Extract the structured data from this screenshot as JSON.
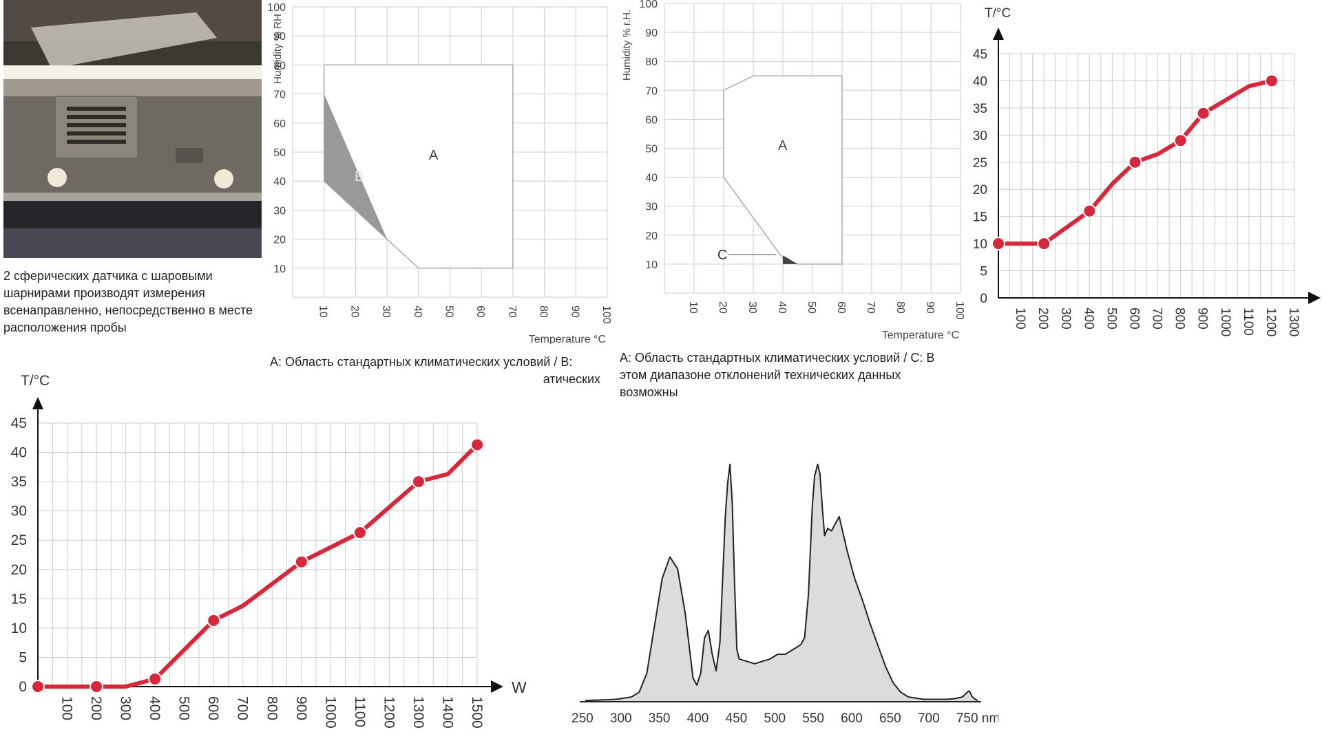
{
  "photo": {
    "caption": "2 сферических датчика с шаровыми шарнирами производят измерения всенаправленно, непосредственно в месте расположения пробы"
  },
  "chart1": {
    "caption_line1": "A: Область стандартных климатических условий / B:",
    "caption_line2": "атических"
  },
  "chart2": {
    "caption": "A: Область стандартных климатических условий / C: В этом диапазоне отклонений технических данных возможны"
  },
  "colors": {
    "series_red": "#d8263a",
    "grid": "#cccccc",
    "region_b": "#999999",
    "spectrum_fill": "#dcdcdc"
  },
  "chart_data": [
    {
      "type": "area",
      "ylabel": "Humidity % RH",
      "xlabel": "Temperature °C",
      "xlim": [
        0,
        100
      ],
      "ylim": [
        0,
        100
      ],
      "x_ticks": [
        10,
        20,
        30,
        40,
        50,
        60,
        70,
        80,
        90,
        100
      ],
      "y_ticks": [
        10,
        20,
        30,
        40,
        50,
        60,
        70,
        80,
        90,
        100
      ],
      "regions": [
        {
          "name": "A",
          "polygon": [
            [
              10,
              80
            ],
            [
              70,
              80
            ],
            [
              70,
              10
            ],
            [
              40,
              10
            ],
            [
              30,
              20
            ],
            [
              10,
              40
            ],
            [
              10,
              70
            ]
          ]
        },
        {
          "name": "B",
          "polygon": [
            [
              10,
              70
            ],
            [
              30,
              20
            ],
            [
              10,
              40
            ]
          ]
        }
      ]
    },
    {
      "type": "area",
      "ylabel": "Humidity % r.H.",
      "xlabel": "Temperature °C",
      "xlim": [
        0,
        100
      ],
      "ylim": [
        0,
        100
      ],
      "x_ticks": [
        10,
        20,
        30,
        40,
        50,
        60,
        70,
        80,
        90,
        100
      ],
      "y_ticks": [
        10,
        20,
        30,
        40,
        50,
        60,
        70,
        80,
        90,
        100
      ],
      "regions": [
        {
          "name": "A",
          "polygon": [
            [
              20,
              70
            ],
            [
              30,
              75
            ],
            [
              60,
              75
            ],
            [
              60,
              10
            ],
            [
              45,
              10
            ],
            [
              40,
              12
            ],
            [
              20,
              40
            ]
          ]
        },
        {
          "name": "C",
          "polygon": [
            [
              40,
              13
            ],
            [
              45,
              10
            ],
            [
              40,
              10
            ]
          ]
        }
      ]
    },
    {
      "type": "line",
      "ylabel": "T/°C",
      "xlim": [
        0,
        1300
      ],
      "ylim": [
        0,
        45
      ],
      "x_ticks": [
        100,
        200,
        300,
        400,
        500,
        600,
        700,
        800,
        900,
        1000,
        1100,
        1200,
        1300
      ],
      "y_ticks": [
        0,
        5,
        10,
        15,
        20,
        25,
        30,
        35,
        40,
        45
      ],
      "series": [
        {
          "x": [
            0,
            200,
            300,
            400,
            500,
            600,
            700,
            800,
            900,
            1000,
            1100,
            1200
          ],
          "y": [
            10,
            10,
            13,
            16,
            21,
            25,
            26.5,
            29,
            34,
            36.5,
            39,
            40
          ],
          "markers": [
            0,
            200,
            400,
            600,
            800,
            900,
            1200
          ]
        }
      ]
    },
    {
      "type": "line",
      "ylabel": "T/°C",
      "xlabel": "W",
      "xlim": [
        0,
        1500
      ],
      "ylim": [
        0,
        45
      ],
      "x_ticks": [
        100,
        200,
        300,
        400,
        500,
        600,
        700,
        800,
        900,
        1000,
        1100,
        1200,
        1300,
        1400,
        1500
      ],
      "y_ticks": [
        0,
        5,
        10,
        15,
        20,
        25,
        30,
        35,
        40,
        45
      ],
      "series": [
        {
          "x": [
            0,
            200,
            300,
            400,
            600,
            700,
            900,
            1100,
            1300,
            1400,
            1500
          ],
          "y": [
            0,
            0,
            0,
            1.3,
            11.3,
            13.8,
            21.3,
            26.3,
            35,
            36.3,
            41.3
          ],
          "markers": [
            0,
            200,
            400,
            600,
            900,
            1100,
            1300,
            1500
          ]
        }
      ]
    },
    {
      "type": "area",
      "xlabel_unit": "nm",
      "xlim": [
        250,
        760
      ],
      "x_ticks": [
        250,
        300,
        350,
        400,
        450,
        500,
        550,
        600,
        650,
        700,
        750
      ],
      "x_tick_labels": [
        "250",
        "300",
        "350",
        "400",
        "450",
        "500",
        "550",
        "600",
        "650",
        "700",
        "750 nm"
      ],
      "ylim": [
        0,
        100
      ],
      "series": [
        {
          "x": [
            250,
            290,
            310,
            320,
            330,
            340,
            350,
            360,
            370,
            380,
            390,
            395,
            400,
            405,
            410,
            415,
            420,
            425,
            428,
            432,
            435,
            438,
            441,
            444,
            447,
            450,
            460,
            470,
            480,
            490,
            500,
            510,
            520,
            530,
            535,
            540,
            545,
            548,
            552,
            555,
            558,
            561,
            565,
            570,
            575,
            580,
            585,
            590,
            595,
            600,
            610,
            620,
            630,
            640,
            650,
            660,
            670,
            680,
            690,
            700,
            710,
            720,
            730,
            740,
            745,
            748,
            750,
            753,
            757,
            760
          ],
          "y": [
            0.5,
            1,
            2,
            4,
            12,
            32,
            52,
            61,
            56,
            37,
            10,
            7,
            12,
            27,
            30,
            20,
            13,
            25,
            48,
            78,
            92,
            100,
            84,
            50,
            22,
            18,
            17,
            16,
            17,
            18,
            20,
            20,
            22,
            24,
            27,
            45,
            82,
            95,
            100,
            96,
            82,
            70,
            73,
            72,
            75,
            78,
            71,
            64,
            58,
            52,
            43,
            33,
            24,
            15,
            8,
            4,
            2,
            1.5,
            1,
            1,
            1,
            1,
            1.3,
            2,
            3.5,
            4.5,
            4,
            2,
            1,
            0.5
          ]
        }
      ]
    }
  ]
}
